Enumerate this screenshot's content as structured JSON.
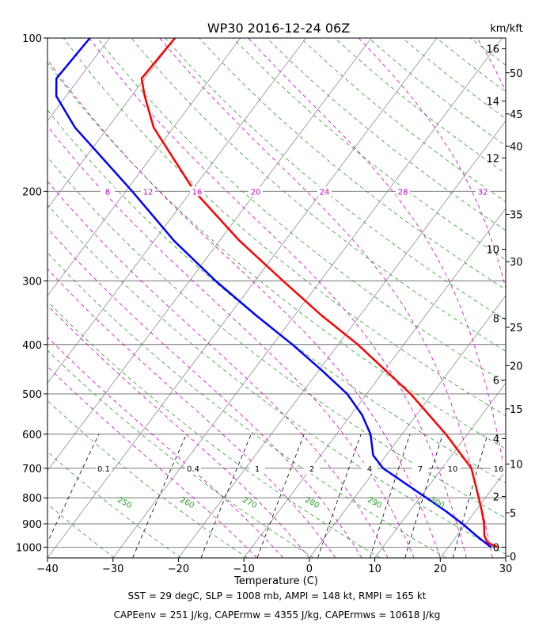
{
  "chart_data": {
    "type": "line",
    "title": "WP30 2016-12-24 06Z",
    "xlabel": "Temperature (C)",
    "ylabel": "",
    "xlim": [
      -40,
      30
    ],
    "pressure_range_mb": [
      1050,
      100
    ],
    "log_pressure_axis": true,
    "skew_t": true,
    "grid": true,
    "x_ticks": [
      -40,
      -30,
      -20,
      -10,
      0,
      10,
      20,
      30
    ],
    "x_tick_labels": [
      "−40",
      "−30",
      "−20",
      "−10",
      "0",
      "10",
      "20",
      "30"
    ],
    "pressure_ticks": [
      100,
      200,
      300,
      400,
      500,
      600,
      700,
      800,
      900,
      1000
    ],
    "pressure_tick_labels": [
      "100",
      "200",
      "300",
      "400",
      "500",
      "600",
      "700",
      "800",
      "900",
      "1000"
    ],
    "height_axis_label": "km/kft",
    "height_km_labels": [
      {
        "p": 105,
        "label": "16"
      },
      {
        "p": 133,
        "label": "14"
      },
      {
        "p": 172,
        "label": "12"
      },
      {
        "p": 260,
        "label": "10"
      },
      {
        "p": 355,
        "label": "8"
      },
      {
        "p": 470,
        "label": "6"
      },
      {
        "p": 612,
        "label": "4"
      },
      {
        "p": 795,
        "label": "2"
      },
      {
        "p": 1000,
        "label": "0"
      }
    ],
    "height_kft_labels": [
      {
        "p": 117,
        "label": "50"
      },
      {
        "p": 141,
        "label": "45"
      },
      {
        "p": 163,
        "label": "40"
      },
      {
        "p": 222,
        "label": "35"
      },
      {
        "p": 275,
        "label": "30"
      },
      {
        "p": 370,
        "label": "25"
      },
      {
        "p": 440,
        "label": "20"
      },
      {
        "p": 535,
        "label": "15"
      },
      {
        "p": 687,
        "label": "10"
      },
      {
        "p": 856,
        "label": "5"
      },
      {
        "p": 1042,
        "label": "0"
      }
    ],
    "mixing_ratio_labels": {
      "at_700mb": [
        "0.1",
        "0.4",
        "1",
        "2",
        "4",
        "7",
        "10",
        "16"
      ],
      "at_200mb": [
        "8",
        "12",
        "16",
        "20",
        "24",
        "28",
        "32"
      ]
    },
    "dry_adiabat_labels": [
      "250",
      "260",
      "270",
      "280",
      "290",
      "300"
    ],
    "series": [
      {
        "name": "",
        "color": "#ff0000",
        "points": [
          {
            "p": 1000,
            "t": 27.5
          },
          {
            "p": 980,
            "t": 25.5
          },
          {
            "p": 950,
            "t": 24.2
          },
          {
            "p": 900,
            "t": 22.8
          },
          {
            "p": 850,
            "t": 21.0
          },
          {
            "p": 800,
            "t": 19.0
          },
          {
            "p": 700,
            "t": 14.5
          },
          {
            "p": 600,
            "t": 6.7
          },
          {
            "p": 500,
            "t": -3.3
          },
          {
            "p": 400,
            "t": -17.0
          },
          {
            "p": 350,
            "t": -26.0
          },
          {
            "p": 300,
            "t": -35.7
          },
          {
            "p": 250,
            "t": -47.0
          },
          {
            "p": 200,
            "t": -59.5
          },
          {
            "p": 150,
            "t": -73.0
          },
          {
            "p": 130,
            "t": -78.0
          },
          {
            "p": 120,
            "t": -80.5
          },
          {
            "p": 100,
            "t": -80.0
          }
        ]
      },
      {
        "name": "",
        "color": "#0000ff",
        "points": [
          {
            "p": 1000,
            "t": 26.5
          },
          {
            "p": 950,
            "t": 23.0
          },
          {
            "p": 900,
            "t": 19.5
          },
          {
            "p": 850,
            "t": 15.5
          },
          {
            "p": 800,
            "t": 11.0
          },
          {
            "p": 700,
            "t": 1.0
          },
          {
            "p": 660,
            "t": -2.0
          },
          {
            "p": 600,
            "t": -4.8
          },
          {
            "p": 550,
            "t": -8.3
          },
          {
            "p": 500,
            "t": -13.0
          },
          {
            "p": 450,
            "t": -19.5
          },
          {
            "p": 400,
            "t": -27.0
          },
          {
            "p": 350,
            "t": -36.0
          },
          {
            "p": 300,
            "t": -46.0
          },
          {
            "p": 250,
            "t": -57.0
          },
          {
            "p": 200,
            "t": -69.0
          },
          {
            "p": 150,
            "t": -85.0
          },
          {
            "p": 130,
            "t": -91.5
          },
          {
            "p": 120,
            "t": -93.5
          },
          {
            "p": 100,
            "t": -93.0
          }
        ]
      }
    ]
  },
  "footer": {
    "line1": "SST = 29 degC, SLP = 1008 mb, AMPI = 148 kt, RMPI = 165 kt",
    "line2": "CAPEenv = 251 J/kg, CAPErmw = 4355 J/kg, CAPErmws = 10618 J/kg"
  }
}
